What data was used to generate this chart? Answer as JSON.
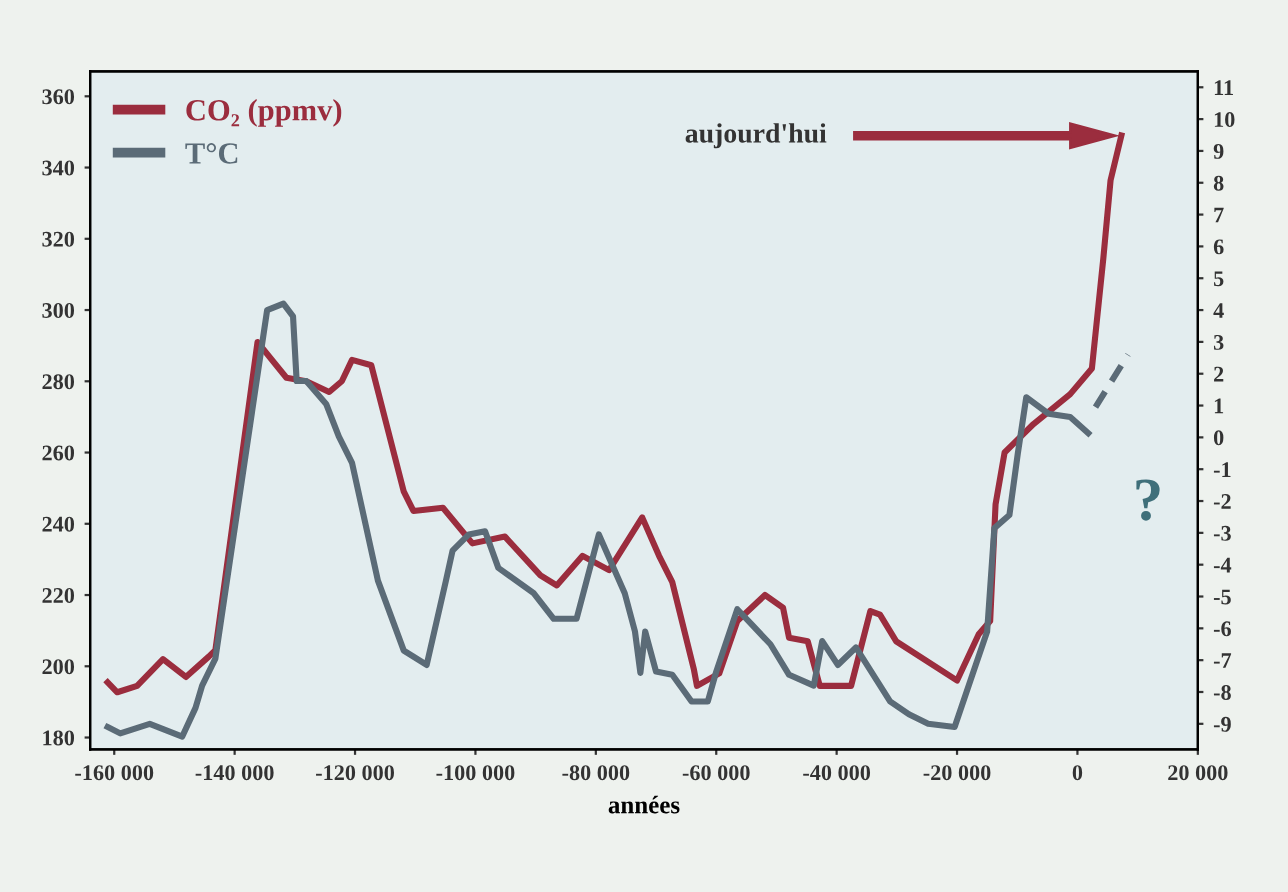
{
  "chart_data": {
    "type": "line",
    "xlabel": "années",
    "xlim": [
      -164000,
      20000
    ],
    "xticks": [
      {
        "value": -160000,
        "label": "-160 000"
      },
      {
        "value": -140000,
        "label": "-140 000"
      },
      {
        "value": -120000,
        "label": "-120 000"
      },
      {
        "value": -100000,
        "label": "-100 000"
      },
      {
        "value": -80000,
        "label": "-80 000"
      },
      {
        "value": -60000,
        "label": "-60 000"
      },
      {
        "value": -40000,
        "label": "-40 000"
      },
      {
        "value": -20000,
        "label": "-20 000"
      },
      0,
      {
        "value": 20000,
        "label": "20 000"
      }
    ],
    "ylim": [
      176.7,
      367
    ],
    "yticks": [
      180,
      200,
      220,
      240,
      260,
      280,
      300,
      320,
      340,
      360
    ],
    "y2lim": [
      -9.8,
      11.5
    ],
    "y2ticks": [
      -9,
      -8,
      -7,
      -6,
      -5,
      -4,
      -3,
      -2,
      -1,
      0,
      1,
      2,
      3,
      4,
      5,
      6,
      7,
      8,
      9,
      10,
      11
    ],
    "grid": false,
    "legend": "top left",
    "marker": "none",
    "series": [
      {
        "name": "CO₂ (ppmv)",
        "color": "#9b2d3e",
        "line_style": "solid",
        "x": [
          -161100,
          -159500,
          -156200,
          -151900,
          -148100,
          -144300,
          -143200,
          -136200,
          -131400,
          -128100,
          -124300,
          -122200,
          -120500,
          -117300,
          -111900,
          -110300,
          -105400,
          -100500,
          -95100,
          -89200,
          -86500,
          -82200,
          -77800,
          -72300,
          -69500,
          -67300,
          -63700,
          -63200,
          -59500,
          -56500,
          -51900,
          -48900,
          -47900,
          -44800,
          -42800,
          -37600,
          -34400,
          -32800,
          -30100,
          -20000,
          -16400,
          -14500,
          -13600,
          -12100,
          -7300,
          -1200,
          2400,
          4300,
          5500,
          7300
        ],
        "values": [
          195.5,
          192.7,
          194.5,
          202,
          197,
          202.7,
          204.5,
          291,
          281,
          280,
          277,
          280,
          286,
          284.5,
          249,
          243.6,
          244.5,
          234.5,
          236.4,
          225.5,
          222.7,
          231,
          227,
          241.8,
          231,
          223.6,
          199,
          194.5,
          198,
          212.7,
          220,
          216.4,
          208,
          207,
          194.5,
          194.5,
          215.5,
          214.5,
          207,
          196,
          209,
          212.7,
          245.5,
          260,
          268,
          276.4,
          283.6,
          314.5,
          336.4,
          349
        ]
      },
      {
        "name": "T°C",
        "color": "#5b6b77",
        "axis": "y2",
        "line_style": "solid",
        "x": [
          -161100,
          -159000,
          -154100,
          -148700,
          -146500,
          -145400,
          -143200,
          -134600,
          -131900,
          -130300,
          -129700,
          -128100,
          -124800,
          -122700,
          -120500,
          -116200,
          -111900,
          -108100,
          -104900,
          -103800,
          -101100,
          -98400,
          -96200,
          -90300,
          -87000,
          -83200,
          -79500,
          -75200,
          -73500,
          -72600,
          -71800,
          -70000,
          -67300,
          -64100,
          -61400,
          -60000,
          -56500,
          -54000,
          -51000,
          -47900,
          -43800,
          -42400,
          -39800,
          -36800,
          -31100,
          -28000,
          -24800,
          -20400,
          -16900,
          -15000,
          -13800,
          -11300,
          -9900,
          -8500,
          -4800,
          -1200,
          1800
        ],
        "values": [
          -9.1,
          -9.3,
          -9.0,
          -9.4,
          -8.5,
          -7.8,
          -6.95,
          4.0,
          4.2,
          3.8,
          1.77,
          1.77,
          1.05,
          0.03,
          -0.8,
          -4.5,
          -6.7,
          -7.15,
          -4.5,
          -3.56,
          -3.05,
          -2.95,
          -4.1,
          -4.9,
          -5.7,
          -5.7,
          -3.05,
          -4.9,
          -6.1,
          -7.4,
          -6.1,
          -7.36,
          -7.46,
          -8.3,
          -8.3,
          -7.36,
          -5.4,
          -5.9,
          -6.5,
          -7.46,
          -7.8,
          -6.4,
          -7.15,
          -6.6,
          -8.3,
          -8.7,
          -9.0,
          -9.1,
          -7.15,
          -6.1,
          -2.85,
          -2.44,
          -0.5,
          1.26,
          0.74,
          0.64,
          0.13
        ]
      },
      {
        "color": "#5b6b77",
        "axis": "y2",
        "line_style": "dashed",
        "x": [
          3000,
          8400
        ],
        "values": [
          0.95,
          2.6
        ]
      }
    ],
    "annotations": [
      "aujourd'hui",
      "?"
    ]
  }
}
